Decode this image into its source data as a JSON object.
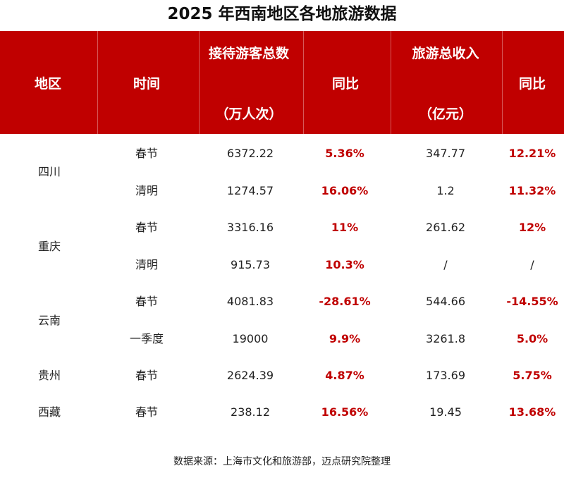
{
  "title": "2025 年西南地区各地旅游数据",
  "table": {
    "headers": {
      "region": "地区",
      "period": "时间",
      "visitors": "接待游客总数",
      "visitors_unit": "（万人次）",
      "visitors_yoy": "同比",
      "revenue": "旅游总收入",
      "revenue_unit": "（亿元）",
      "revenue_yoy": "同比"
    },
    "regions": [
      "四川",
      "重庆",
      "云南",
      "贵州",
      "西藏"
    ],
    "rows": [
      {
        "period": "春节",
        "visitors": "6372.22",
        "visitors_yoy": "5.36%",
        "revenue": "347.77",
        "revenue_yoy": "12.21%"
      },
      {
        "period": "清明",
        "visitors": "1274.57",
        "visitors_yoy": "16.06%",
        "revenue": "1.2",
        "revenue_yoy": "11.32%"
      },
      {
        "period": "春节",
        "visitors": "3316.16",
        "visitors_yoy": "11%",
        "revenue": "261.62",
        "revenue_yoy": "12%"
      },
      {
        "period": "清明",
        "visitors": "915.73",
        "visitors_yoy": "10.3%",
        "revenue": "/",
        "revenue_yoy": "/"
      },
      {
        "period": "春节",
        "visitors": "4081.83",
        "visitors_yoy": "-28.61%",
        "revenue": "544.66",
        "revenue_yoy": "-14.55%"
      },
      {
        "period": "一季度",
        "visitors": "19000",
        "visitors_yoy": "9.9%",
        "revenue": "3261.8",
        "revenue_yoy": "5.0%"
      },
      {
        "period": "春节",
        "visitors": "2624.39",
        "visitors_yoy": "4.87%",
        "revenue": "173.69",
        "revenue_yoy": "5.75%"
      },
      {
        "period": "春节",
        "visitors": "238.12",
        "visitors_yoy": "16.56%",
        "revenue": "19.45",
        "revenue_yoy": "13.68%"
      }
    ]
  },
  "source": "数据来源：上海市文化和旅游部，迈点研究院整理",
  "colors": {
    "header_bg": "#c00000",
    "highlight": "#c00000"
  }
}
